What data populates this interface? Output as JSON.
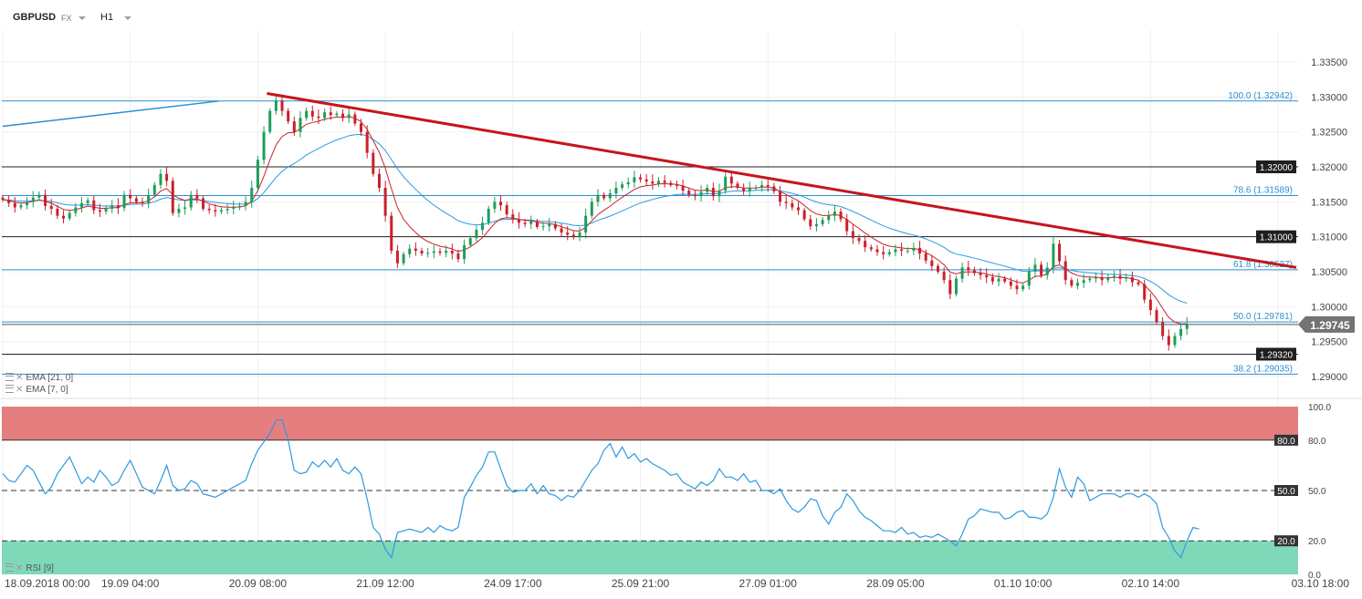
{
  "header": {
    "symbol": "GBPUSD",
    "instrument_type": "FX",
    "timeframe": "H1"
  },
  "indicators": {
    "ema_slow": {
      "label": "EMA",
      "params": "[21, 0]",
      "color": "#2b9be0"
    },
    "ema_fast": {
      "label": "EMA",
      "params": "[7, 0]",
      "color": "#cc1f2a"
    },
    "rsi": {
      "label": "RSI",
      "params": "[9]",
      "color": "#2b9be0"
    }
  },
  "colors": {
    "bull": "#1e9e5a",
    "bear": "#cc1f2a",
    "fib": "#2b8fd0",
    "level": "#222222",
    "trendline": "#c4161c",
    "overbought": "#e57f7f",
    "oversold": "#7fd9b9",
    "axis_text": "#444444",
    "current_price_box": "#737373"
  },
  "chart_data": [
    {
      "type": "candlestick",
      "symbol": "GBPUSD",
      "timeframe": "H1",
      "ylim": [
        1.2885,
        1.3395
      ],
      "yticks": [
        "1.33500",
        "1.33000",
        "1.32500",
        "1.32000",
        "1.31500",
        "1.31000",
        "1.30500",
        "1.30000",
        "1.29500",
        "1.29000"
      ],
      "ytick_values": [
        1.335,
        1.33,
        1.325,
        1.32,
        1.315,
        1.31,
        1.305,
        1.3,
        1.295,
        1.29
      ],
      "xticks": [
        "18.09.2018  00:00",
        "19.09  04:00",
        "20.09  08:00",
        "21.09  12:00",
        "24.09  17:00",
        "25.09  21:00",
        "27.09  01:00",
        "28.09  05:00",
        "01.10  10:00",
        "02.10  14:00",
        "03.10  18:00"
      ],
      "x_range": [
        0,
        213
      ],
      "xtick_positions": [
        0,
        21,
        42,
        63,
        84,
        105,
        126,
        147,
        168,
        189,
        210
      ],
      "current_price": {
        "value": 1.29745,
        "label": "1.29745"
      },
      "horizontal_levels": [
        {
          "value": 1.32,
          "label": "1.32000"
        },
        {
          "value": 1.31,
          "label": "1.31000"
        },
        {
          "value": 1.2932,
          "label": "1.29320"
        }
      ],
      "fibonacci_levels": [
        {
          "value": 1.32942,
          "label": "100.0 (1.32942)"
        },
        {
          "value": 1.31589,
          "label": "78.6 (1.31589)"
        },
        {
          "value": 1.30527,
          "label": "61.8 (1.30527)"
        },
        {
          "value": 1.29781,
          "label": "50.0 (1.29781)"
        },
        {
          "value": 1.29035,
          "label": "38.2 (1.29035)"
        }
      ],
      "trendlines": [
        {
          "style": "thick",
          "from": [
            43.5,
            1.3305
          ],
          "to": [
            213,
            1.3056
          ]
        },
        {
          "style": "thin",
          "from": [
            0,
            1.3258
          ],
          "to": [
            35.5,
            1.3294
          ]
        }
      ],
      "ema_periods": [
        21,
        7
      ],
      "close": [
        1.3153,
        1.3148,
        1.3142,
        1.3145,
        1.315,
        1.3156,
        1.316,
        1.3144,
        1.314,
        1.313,
        1.3126,
        1.3134,
        1.3142,
        1.3148,
        1.3152,
        1.3138,
        1.3136,
        1.314,
        1.3145,
        1.3141,
        1.316,
        1.3155,
        1.315,
        1.3148,
        1.316,
        1.3174,
        1.319,
        1.318,
        1.3134,
        1.314,
        1.3142,
        1.316,
        1.3155,
        1.314,
        1.3138,
        1.3136,
        1.3138,
        1.314,
        1.3142,
        1.3144,
        1.315,
        1.317,
        1.321,
        1.325,
        1.328,
        1.3295,
        1.328,
        1.3265,
        1.325,
        1.327,
        1.328,
        1.3272,
        1.327,
        1.3278,
        1.3274,
        1.3276,
        1.327,
        1.3275,
        1.3262,
        1.325,
        1.322,
        1.319,
        1.317,
        1.313,
        1.308,
        1.3062,
        1.3075,
        1.3083,
        1.308,
        1.3076,
        1.3077,
        1.3079,
        1.3077,
        1.308,
        1.3076,
        1.3068,
        1.3088,
        1.3098,
        1.311,
        1.312,
        1.314,
        1.315,
        1.3145,
        1.3132,
        1.3125,
        1.312,
        1.3118,
        1.3122,
        1.3114,
        1.3115,
        1.3118,
        1.3112,
        1.3106,
        1.3103,
        1.31,
        1.3106,
        1.313,
        1.315,
        1.316,
        1.3155,
        1.3162,
        1.317,
        1.3175,
        1.3178,
        1.3185,
        1.3182,
        1.3179,
        1.3176,
        1.318,
        1.3177,
        1.3174,
        1.3173,
        1.3166,
        1.316,
        1.3158,
        1.3164,
        1.317,
        1.3158,
        1.3166,
        1.3186,
        1.3176,
        1.317,
        1.3165,
        1.317,
        1.317,
        1.3174,
        1.3172,
        1.3165,
        1.315,
        1.3148,
        1.3142,
        1.3138,
        1.3125,
        1.3115,
        1.3118,
        1.3124,
        1.313,
        1.3136,
        1.3125,
        1.3108,
        1.3098,
        1.3094,
        1.3085,
        1.3082,
        1.3078,
        1.3075,
        1.3078,
        1.3082,
        1.308,
        1.308,
        1.3084,
        1.3076,
        1.3066,
        1.3058,
        1.305,
        1.3038,
        1.3018,
        1.304,
        1.3056,
        1.3052,
        1.3048,
        1.3045,
        1.3042,
        1.3036,
        1.304,
        1.3036,
        1.303,
        1.3025,
        1.303,
        1.305,
        1.306,
        1.3045,
        1.3056,
        1.309,
        1.3065,
        1.3038,
        1.303,
        1.3034,
        1.3038,
        1.304,
        1.3042,
        1.3038,
        1.3042,
        1.3044,
        1.304,
        1.3042,
        1.3035,
        1.3032,
        1.301,
        1.2995,
        1.2978,
        1.2958,
        1.2945,
        1.2958,
        1.2968,
        1.2975
      ],
      "ema_fast_last_index": 193,
      "ema_slow_last_index": 193
    },
    {
      "type": "line",
      "name": "RSI [9]",
      "ylim": [
        0,
        100
      ],
      "yticks": [
        "100.0",
        "80.0",
        "50.0",
        "20.0",
        "0.0"
      ],
      "ytick_values": [
        100,
        80,
        50,
        20,
        0
      ],
      "overbought": 80,
      "oversold": 20,
      "midline": 50,
      "values": [
        60,
        56,
        55,
        60,
        65,
        62,
        55,
        48,
        52,
        60,
        65,
        70,
        62,
        54,
        58,
        55,
        62,
        58,
        53,
        55,
        62,
        68,
        60,
        52,
        50,
        48,
        56,
        65,
        53,
        50,
        51,
        56,
        54,
        48,
        47,
        46,
        48,
        50,
        52,
        54,
        56,
        66,
        74,
        79,
        84,
        92,
        92,
        80,
        62,
        60,
        61,
        67,
        64,
        68,
        64,
        69,
        62,
        60,
        64,
        60,
        45,
        28,
        24,
        15,
        10,
        25,
        26,
        27,
        26,
        25,
        28,
        25,
        29,
        27,
        26,
        28,
        46,
        52,
        59,
        64,
        73,
        73,
        63,
        53,
        49,
        50,
        50,
        54,
        48,
        53,
        48,
        47,
        44,
        47,
        46,
        50,
        56,
        62,
        66,
        74,
        78,
        70,
        76,
        69,
        72,
        67,
        69,
        66,
        64,
        62,
        59,
        60,
        55,
        53,
        51,
        55,
        53,
        56,
        63,
        58,
        58,
        56,
        60,
        55,
        56,
        50,
        50,
        48,
        51,
        44,
        39,
        37,
        40,
        45,
        44,
        35,
        30,
        37,
        40,
        48,
        44,
        38,
        34,
        32,
        29,
        26,
        26,
        25,
        28,
        24,
        25,
        22,
        23,
        22,
        24,
        22,
        20,
        17,
        24,
        33,
        35,
        39,
        38,
        37,
        37,
        33,
        34,
        37,
        38,
        34,
        34,
        33,
        36,
        46,
        63,
        52,
        46,
        58,
        54,
        44,
        46,
        48,
        48,
        48,
        46,
        48,
        48,
        46,
        48,
        46,
        42,
        28,
        22,
        14,
        10,
        20,
        28,
        27
      ]
    }
  ]
}
